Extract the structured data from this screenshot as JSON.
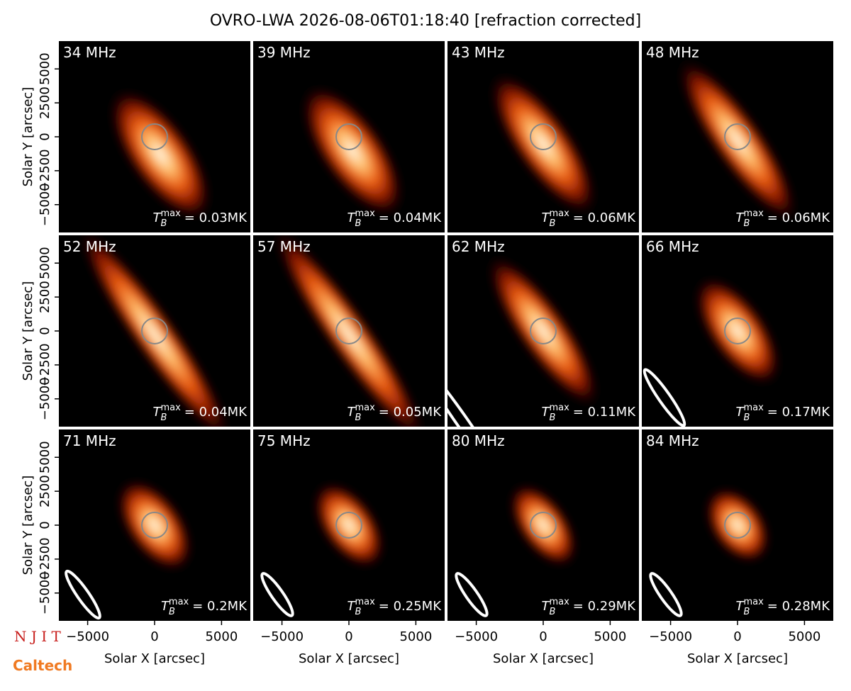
{
  "title": "OVRO-LWA 2026-08-06T01:18:40 [refraction corrected]",
  "logos": [
    "N J I T",
    "Caltech"
  ],
  "axes": {
    "xlabel": "Solar X [arcsec]",
    "ylabel": "Solar Y [arcsec]",
    "xlim": [
      -7150,
      7150
    ],
    "ylim": [
      -7050,
      7050
    ],
    "xticks": [
      {
        "value": -5000,
        "label": "−5000"
      },
      0,
      5000
    ],
    "yticks": [
      {
        "value": -5000,
        "label": "−5000"
      },
      {
        "value": -2500,
        "label": "−2500"
      },
      0,
      2500,
      5000
    ]
  },
  "tb_symbol": {
    "symbol": "T",
    "subscript": "B",
    "superscript": "max"
  },
  "chart_data": [
    {
      "type": "image",
      "label": "34 MHz",
      "tb_max": "= 0.03MK"
    },
    {
      "type": "image",
      "label": "39 MHz",
      "tb_max": "= 0.04MK"
    },
    {
      "type": "image",
      "label": "43 MHz",
      "tb_max": "= 0.06MK"
    },
    {
      "type": "image",
      "label": "48 MHz",
      "tb_max": "= 0.06MK"
    },
    {
      "type": "image",
      "label": "52 MHz",
      "tb_max": "= 0.04MK"
    },
    {
      "type": "image",
      "label": "57 MHz",
      "tb_max": "= 0.05MK"
    },
    {
      "type": "image",
      "label": "62 MHz",
      "tb_max": "= 0.11MK"
    },
    {
      "type": "image",
      "label": "66 MHz",
      "tb_max": "= 0.17MK"
    },
    {
      "type": "image",
      "label": "71 MHz",
      "tb_max": "= 0.2MK"
    },
    {
      "type": "image",
      "label": "75 MHz",
      "tb_max": "= 0.25MK"
    },
    {
      "type": "image",
      "label": "80 MHz",
      "tb_max": "= 0.29MK"
    },
    {
      "type": "image",
      "label": "84 MHz",
      "tb_max": "= 0.28MK"
    }
  ]
}
